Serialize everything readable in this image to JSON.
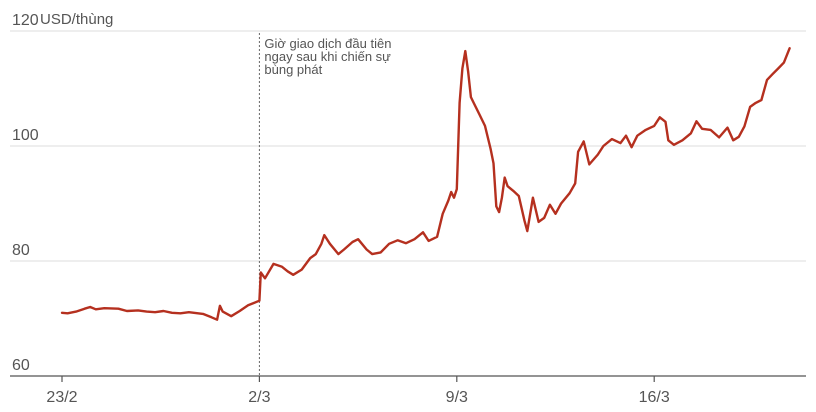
{
  "chart_data": {
    "type": "line",
    "title": "",
    "y_unit_label": "USD/thùng",
    "ylim": [
      60,
      120
    ],
    "y_ticks": [
      {
        "value": 120,
        "label": "120"
      },
      {
        "value": 100,
        "label": "100"
      },
      {
        "value": 80,
        "label": "80"
      },
      {
        "value": 60,
        "label": "60"
      }
    ],
    "x_ticks": [
      {
        "value": 0,
        "label": "23/2"
      },
      {
        "value": 7,
        "label": "2/3"
      },
      {
        "value": 14,
        "label": "9/3"
      },
      {
        "value": 21,
        "label": "16/3"
      }
    ],
    "annotation": {
      "x": 7,
      "lines": [
        "Giờ giao dịch đầu tiên",
        "ngay sau khi chiến sự",
        "bùng phát"
      ]
    },
    "grid": true,
    "line_color": "#b5301f",
    "series": [
      {
        "name": "",
        "points": [
          [
            0.0,
            71.0
          ],
          [
            0.2,
            70.9
          ],
          [
            0.5,
            71.2
          ],
          [
            0.8,
            71.7
          ],
          [
            1.0,
            72.0
          ],
          [
            1.2,
            71.6
          ],
          [
            1.5,
            71.8
          ],
          [
            2.0,
            71.7
          ],
          [
            2.3,
            71.3
          ],
          [
            2.7,
            71.4
          ],
          [
            3.0,
            71.2
          ],
          [
            3.3,
            71.1
          ],
          [
            3.6,
            71.3
          ],
          [
            3.9,
            71.0
          ],
          [
            4.2,
            70.9
          ],
          [
            4.5,
            71.1
          ],
          [
            5.0,
            70.8
          ],
          [
            5.3,
            70.2
          ],
          [
            5.5,
            69.8
          ],
          [
            5.6,
            72.2
          ],
          [
            5.7,
            71.2
          ],
          [
            6.0,
            70.4
          ],
          [
            6.3,
            71.3
          ],
          [
            6.6,
            72.3
          ],
          [
            6.8,
            72.7
          ],
          [
            7.0,
            73.1
          ],
          [
            7.05,
            78.0
          ],
          [
            7.2,
            77.0
          ],
          [
            7.5,
            79.5
          ],
          [
            7.8,
            79.0
          ],
          [
            8.0,
            78.2
          ],
          [
            8.2,
            77.6
          ],
          [
            8.5,
            78.5
          ],
          [
            8.8,
            80.5
          ],
          [
            9.0,
            81.2
          ],
          [
            9.2,
            83.0
          ],
          [
            9.3,
            84.5
          ],
          [
            9.5,
            83.0
          ],
          [
            9.8,
            81.2
          ],
          [
            10.0,
            82.0
          ],
          [
            10.3,
            83.3
          ],
          [
            10.5,
            83.8
          ],
          [
            10.8,
            82.0
          ],
          [
            11.0,
            81.2
          ],
          [
            11.3,
            81.5
          ],
          [
            11.6,
            83.0
          ],
          [
            11.9,
            83.6
          ],
          [
            12.2,
            83.1
          ],
          [
            12.5,
            83.8
          ],
          [
            12.8,
            85.0
          ],
          [
            13.0,
            83.5
          ],
          [
            13.3,
            84.2
          ],
          [
            13.5,
            88.2
          ],
          [
            13.7,
            90.5
          ],
          [
            13.8,
            92.0
          ],
          [
            13.9,
            91.0
          ],
          [
            14.0,
            92.5
          ],
          [
            14.1,
            107.5
          ],
          [
            14.2,
            113.5
          ],
          [
            14.3,
            116.5
          ],
          [
            14.4,
            113.0
          ],
          [
            14.5,
            108.5
          ],
          [
            14.6,
            107.5
          ],
          [
            14.8,
            105.5
          ],
          [
            15.0,
            103.5
          ],
          [
            15.2,
            99.5
          ],
          [
            15.3,
            97.0
          ],
          [
            15.4,
            89.5
          ],
          [
            15.5,
            88.5
          ],
          [
            15.6,
            91.0
          ],
          [
            15.7,
            94.5
          ],
          [
            15.8,
            93.0
          ],
          [
            16.0,
            92.2
          ],
          [
            16.2,
            91.3
          ],
          [
            16.4,
            87.0
          ],
          [
            16.5,
            85.2
          ],
          [
            16.7,
            91.0
          ],
          [
            16.9,
            86.8
          ],
          [
            17.1,
            87.5
          ],
          [
            17.3,
            89.8
          ],
          [
            17.5,
            88.2
          ],
          [
            17.7,
            90.0
          ],
          [
            18.0,
            91.8
          ],
          [
            18.2,
            93.5
          ],
          [
            18.3,
            99.0
          ],
          [
            18.5,
            100.8
          ],
          [
            18.7,
            96.8
          ],
          [
            19.0,
            98.5
          ],
          [
            19.2,
            100.0
          ],
          [
            19.5,
            101.2
          ],
          [
            19.8,
            100.5
          ],
          [
            20.0,
            101.8
          ],
          [
            20.2,
            99.8
          ],
          [
            20.4,
            101.8
          ],
          [
            20.7,
            102.8
          ],
          [
            21.0,
            103.5
          ],
          [
            21.2,
            105.0
          ],
          [
            21.4,
            104.2
          ],
          [
            21.5,
            101.0
          ],
          [
            21.7,
            100.2
          ],
          [
            22.0,
            101.0
          ],
          [
            22.3,
            102.2
          ],
          [
            22.5,
            104.3
          ],
          [
            22.7,
            103.0
          ],
          [
            23.0,
            102.8
          ],
          [
            23.3,
            101.5
          ],
          [
            23.6,
            103.2
          ],
          [
            23.8,
            101.0
          ],
          [
            24.0,
            101.6
          ],
          [
            24.2,
            103.4
          ],
          [
            24.4,
            106.8
          ],
          [
            24.6,
            107.5
          ],
          [
            24.8,
            108.0
          ],
          [
            25.0,
            111.5
          ],
          [
            25.2,
            112.5
          ],
          [
            25.4,
            113.5
          ],
          [
            25.6,
            114.5
          ],
          [
            25.8,
            117.0
          ]
        ]
      }
    ]
  }
}
